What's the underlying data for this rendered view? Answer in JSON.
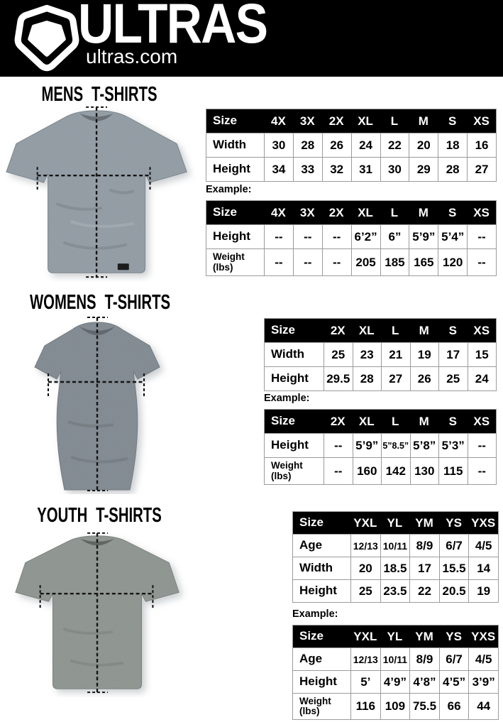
{
  "header": {
    "brand": "ULTRAS",
    "site": "ultras.com",
    "logo_icon": "pentagon-shield-icon"
  },
  "colors": {
    "header_bg": "#000000",
    "header_text": "#ffffff",
    "table_header_bg": "#000000",
    "table_header_text": "#ffffff",
    "table_border": "#9b9b9b",
    "mens_shirt": "#8e98a0",
    "womens_shirt": "#7d868d",
    "youth_shirt": "#8a918d"
  },
  "sections": [
    {
      "id": "mens",
      "title": "MENS T-SHIRTS",
      "example_label": "Example:",
      "size_table": {
        "header": [
          "Size",
          "4X",
          "3X",
          "2X",
          "XL",
          "L",
          "M",
          "S",
          "XS"
        ],
        "rows": [
          {
            "label": "Width",
            "cells": [
              "30",
              "28",
              "26",
              "24",
              "22",
              "20",
              "18",
              "16"
            ]
          },
          {
            "label": "Height",
            "cells": [
              "34",
              "33",
              "32",
              "31",
              "30",
              "29",
              "28",
              "27"
            ]
          }
        ]
      },
      "example_table": {
        "header": [
          "Size",
          "4X",
          "3X",
          "2X",
          "XL",
          "L",
          "M",
          "S",
          "XS"
        ],
        "rows": [
          {
            "label": "Height",
            "cells": [
              "--",
              "--",
              "--",
              "6’2”",
              "6”",
              "5’9”",
              "5’4”",
              "--"
            ]
          },
          {
            "label": "Weight\n(lbs)",
            "cells": [
              "--",
              "--",
              "--",
              "205",
              "185",
              "165",
              "120",
              "--"
            ]
          }
        ]
      }
    },
    {
      "id": "womens",
      "title": "WOMENS T-SHIRTS",
      "example_label": "Example:",
      "size_table": {
        "header": [
          "Size",
          "2X",
          "XL",
          "L",
          "M",
          "S",
          "XS"
        ],
        "rows": [
          {
            "label": "Width",
            "cells": [
              "25",
              "23",
              "21",
              "19",
              "17",
              "15"
            ]
          },
          {
            "label": "Height",
            "cells": [
              "29.5",
              "28",
              "27",
              "26",
              "25",
              "24"
            ]
          }
        ]
      },
      "example_table": {
        "header": [
          "Size",
          "2X",
          "XL",
          "L",
          "M",
          "S",
          "XS"
        ],
        "rows": [
          {
            "label": "Height",
            "cells": [
              "--",
              "5’9”",
              "5”8.5”",
              "5’8”",
              "5’3”",
              "--"
            ]
          },
          {
            "label": "Weight\n(lbs)",
            "cells": [
              "--",
              "160",
              "142",
              "130",
              "115",
              "--"
            ]
          }
        ]
      }
    },
    {
      "id": "youth",
      "title": "YOUTH T-SHIRTS",
      "example_label": "Example:",
      "size_table": {
        "header": [
          "Size",
          "YXL",
          "YL",
          "YM",
          "YS",
          "YXS"
        ],
        "rows": [
          {
            "label": "Age",
            "cells": [
              "12/13",
              "10/11",
              "8/9",
              "6/7",
              "4/5"
            ]
          },
          {
            "label": "Width",
            "cells": [
              "20",
              "18.5",
              "17",
              "15.5",
              "14"
            ]
          },
          {
            "label": "Height",
            "cells": [
              "25",
              "23.5",
              "22",
              "20.5",
              "19"
            ]
          }
        ]
      },
      "example_table": {
        "header": [
          "Size",
          "YXL",
          "YL",
          "YM",
          "YS",
          "YXS"
        ],
        "rows": [
          {
            "label": "Age",
            "cells": [
              "12/13",
              "10/11",
              "8/9",
              "6/7",
              "4/5"
            ]
          },
          {
            "label": "Height",
            "cells": [
              "5’",
              "4’9”",
              "4’8”",
              "4’5”",
              "3’9”"
            ]
          },
          {
            "label": "Weight\n(lbs)",
            "cells": [
              "116",
              "109",
              "75.5",
              "66",
              "44"
            ]
          }
        ]
      }
    }
  ]
}
